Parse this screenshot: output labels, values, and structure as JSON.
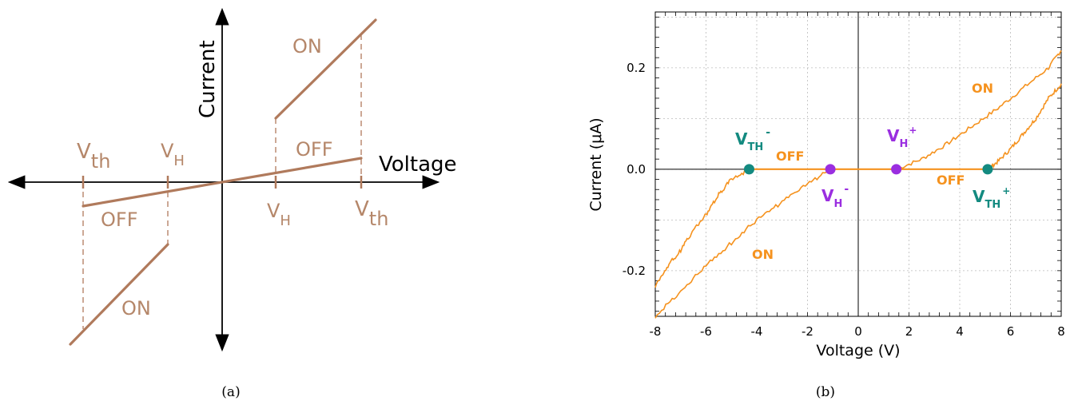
{
  "panel_a": {
    "caption": "(a)",
    "axis_labels": {
      "x": "Voltage",
      "y": "Current"
    },
    "labels": {
      "on": "ON",
      "off": "OFF",
      "v": "V",
      "th": "th",
      "h": "H"
    },
    "colors": {
      "curve": "#b07a5c",
      "axis": "#000000",
      "text": "#b5876a"
    }
  },
  "panel_b": {
    "caption": "(b)",
    "labels": {
      "on": "ON",
      "off": "OFF",
      "v": "V",
      "th_sub": "TH",
      "h_sub": "H",
      "plus": "+",
      "minus": "-"
    },
    "colors": {
      "curve": "#f5921e",
      "threshold": "#138a80",
      "hold": "#9a2ee0",
      "grid": "#bbbbbb"
    }
  },
  "chart_data": [
    {
      "type": "line",
      "title": "",
      "xlabel": "Voltage",
      "ylabel": "Current",
      "points": {
        "V_th_negative": -1.0,
        "V_H_negative": -0.36,
        "V_H_positive": 0.36,
        "V_th_positive": 0.9
      },
      "series": [
        {
          "name": "OFF",
          "x": [
            -1.0,
            1.0
          ],
          "y": [
            -0.22,
            0.22
          ]
        },
        {
          "name": "ON",
          "x": [
            0.36,
            1.0
          ],
          "y": [
            0.55,
            1.5
          ]
        },
        {
          "name": "ON",
          "x": [
            -1.0,
            -0.36
          ],
          "y": [
            -1.5,
            -0.55
          ]
        }
      ]
    },
    {
      "type": "line",
      "title": "",
      "xlabel": "Voltage (V)",
      "ylabel": "Current (μA)",
      "xlim": [
        -8,
        8
      ],
      "ylim": [
        -0.29,
        0.31
      ],
      "xticks": [
        -8,
        -6,
        -4,
        -2,
        0,
        2,
        4,
        6,
        8
      ],
      "yticks": [
        -0.2,
        0.0,
        0.2
      ],
      "ytick_labels": [
        "-0.2",
        "0.0",
        "0.2"
      ],
      "grid": true,
      "series": [
        {
          "name": "OFF",
          "x": [
            -4.3,
            5.1
          ],
          "y": [
            0.0,
            0.0
          ]
        },
        {
          "name": "ON",
          "x": [
            1.5,
            2.5,
            3.5,
            4.5,
            5.5,
            6.5,
            7.5,
            8.0
          ],
          "y": [
            0.0,
            0.02,
            0.05,
            0.085,
            0.12,
            0.16,
            0.2,
            0.235
          ]
        },
        {
          "name": "ON",
          "x": [
            5.1,
            5.5,
            6.0,
            6.5,
            7.0,
            7.5,
            8.0
          ],
          "y": [
            0.0,
            0.015,
            0.04,
            0.07,
            0.1,
            0.14,
            0.168
          ]
        },
        {
          "name": "ON",
          "x": [
            -1.1,
            -2.0,
            -3.0,
            -4.0,
            -5.0,
            -6.0,
            -7.0,
            -8.0
          ],
          "y": [
            0.0,
            -0.03,
            -0.065,
            -0.1,
            -0.145,
            -0.19,
            -0.24,
            -0.29
          ]
        },
        {
          "name": "ON",
          "x": [
            -4.3,
            -5.0,
            -5.5,
            -6.0,
            -6.5,
            -7.0,
            -7.5,
            -8.0
          ],
          "y": [
            0.0,
            -0.02,
            -0.05,
            -0.09,
            -0.12,
            -0.16,
            -0.19,
            -0.23
          ]
        }
      ],
      "markers": [
        {
          "name": "V_TH-",
          "x": -4.3,
          "y": 0.0,
          "color": "#138a80"
        },
        {
          "name": "V_H-",
          "x": -1.1,
          "y": 0.0,
          "color": "#9a2ee0"
        },
        {
          "name": "V_H+",
          "x": 1.5,
          "y": 0.0,
          "color": "#9a2ee0"
        },
        {
          "name": "V_TH+",
          "x": 5.1,
          "y": 0.0,
          "color": "#138a80"
        }
      ]
    }
  ]
}
